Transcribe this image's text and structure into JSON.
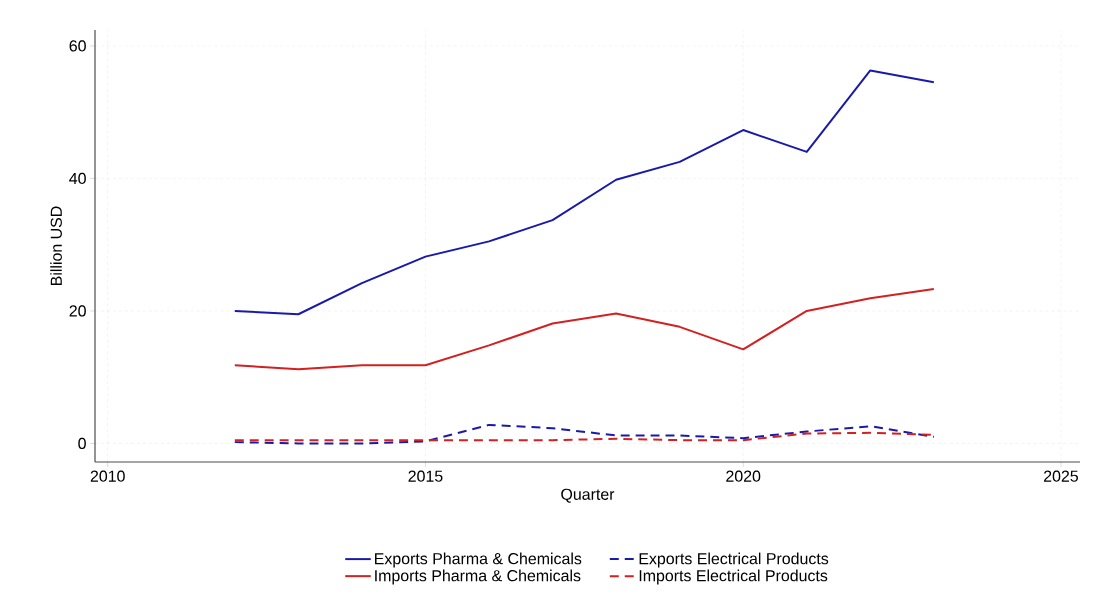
{
  "chart_data": {
    "type": "line",
    "xlabel": "Quarter",
    "ylabel": "Billion USD",
    "x": [
      2012,
      2013,
      2014,
      2015,
      2016,
      2017,
      2018,
      2019,
      2020,
      2021,
      2022,
      2023
    ],
    "series": [
      {
        "name": "Exports Pharma & Chemicals",
        "color": "#1a1aaa",
        "line_style": "solid",
        "values": [
          20,
          19.5,
          24.2,
          28.2,
          30.5,
          33.7,
          39.8,
          42.5,
          47.3,
          44,
          56.3,
          54.5
        ]
      },
      {
        "name": "Imports Pharma & Chemicals",
        "color": "#d32020",
        "line_style": "solid",
        "values": [
          11.8,
          11.2,
          11.8,
          11.8,
          14.8,
          18.1,
          19.6,
          17.6,
          14.2,
          20,
          21.9,
          23.3
        ]
      },
      {
        "name": "Exports Electrical Products",
        "color": "#1a1aaa",
        "line_style": "dashed",
        "values": [
          0.2,
          0,
          0,
          0.3,
          2.8,
          2.3,
          1.2,
          1.2,
          0.8,
          1.8,
          2.6,
          1
        ]
      },
      {
        "name": "Imports Electrical Products",
        "color": "#d32020",
        "line_style": "dashed",
        "values": [
          0.5,
          0.5,
          0.5,
          0.5,
          0.5,
          0.5,
          0.7,
          0.5,
          0.5,
          1.5,
          1.6,
          1.3
        ]
      }
    ],
    "xlim": [
      2009.8,
      2025.3
    ],
    "ylim": [
      -2.8,
      62.4
    ],
    "xticks": [
      2010,
      2015,
      2020,
      2025
    ],
    "yticks": [
      0,
      20,
      40,
      60
    ],
    "grid": true,
    "legend": "bottom",
    "marker": "none"
  }
}
